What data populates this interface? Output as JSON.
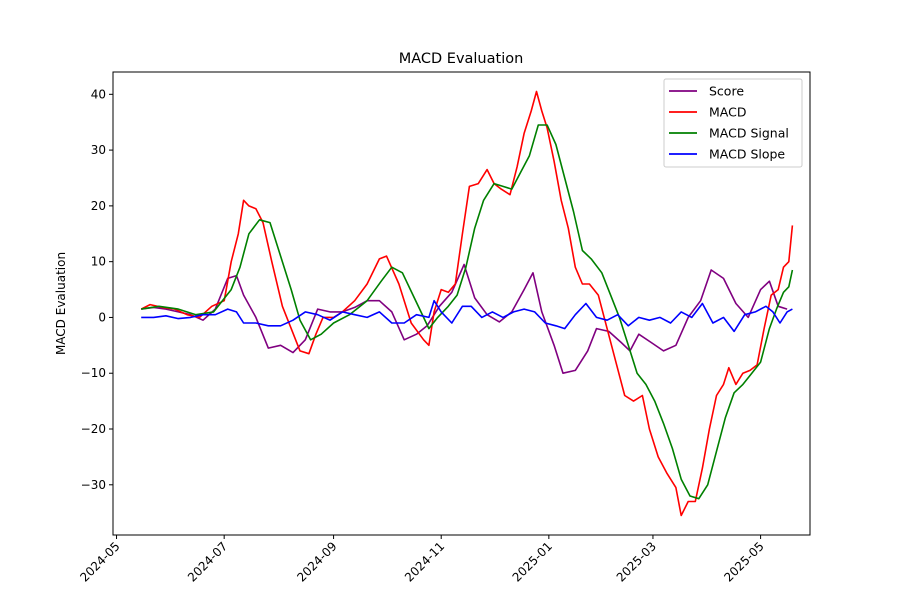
{
  "chart_data": {
    "type": "line",
    "title": "MACD Evaluation",
    "xlabel": "",
    "ylabel": "MACD Evaluation",
    "x_type": "date",
    "xlim": [
      "2024-04-29",
      "2025-05-29"
    ],
    "ylim": [
      -39,
      44
    ],
    "x_ticks": [
      "2024-05",
      "2024-07",
      "2024-09",
      "2024-11",
      "2025-01",
      "2025-03",
      "2025-05"
    ],
    "y_ticks": [
      -30,
      -20,
      -10,
      0,
      10,
      20,
      30,
      40
    ],
    "grid": false,
    "legend_position": "top-right",
    "series": [
      {
        "name": "Score",
        "color": "#800080",
        "points": [
          [
            "2024-05-15",
            1.5
          ],
          [
            "2024-05-22",
            1.8
          ],
          [
            "2024-05-29",
            1.5
          ],
          [
            "2024-06-05",
            1.0
          ],
          [
            "2024-06-12",
            0.5
          ],
          [
            "2024-06-19",
            -0.5
          ],
          [
            "2024-06-26",
            1.5
          ],
          [
            "2024-07-03",
            7.0
          ],
          [
            "2024-07-08",
            7.5
          ],
          [
            "2024-07-12",
            4.0
          ],
          [
            "2024-07-19",
            0.0
          ],
          [
            "2024-07-26",
            -5.5
          ],
          [
            "2024-08-02",
            -5.0
          ],
          [
            "2024-08-09",
            -6.3
          ],
          [
            "2024-08-16",
            -4.0
          ],
          [
            "2024-08-23",
            1.5
          ],
          [
            "2024-08-30",
            1.0
          ],
          [
            "2024-09-06",
            1.0
          ],
          [
            "2024-09-13",
            1.8
          ],
          [
            "2024-09-20",
            3.0
          ],
          [
            "2024-09-27",
            3.0
          ],
          [
            "2024-10-04",
            1.0
          ],
          [
            "2024-10-11",
            -4.0
          ],
          [
            "2024-10-18",
            -3.0
          ],
          [
            "2024-10-24",
            -1.5
          ],
          [
            "2024-10-31",
            2.0
          ],
          [
            "2024-11-07",
            4.5
          ],
          [
            "2024-11-14",
            9.5
          ],
          [
            "2024-11-20",
            3.5
          ],
          [
            "2024-11-27",
            0.5
          ],
          [
            "2024-12-04",
            -0.8
          ],
          [
            "2024-12-11",
            1.0
          ],
          [
            "2024-12-18",
            5.0
          ],
          [
            "2024-12-23",
            8.0
          ],
          [
            "2024-12-28",
            1.0
          ],
          [
            "2025-01-04",
            -5.0
          ],
          [
            "2025-01-09",
            -10.0
          ],
          [
            "2025-01-16",
            -9.5
          ],
          [
            "2025-01-23",
            -6.0
          ],
          [
            "2025-01-28",
            -2.0
          ],
          [
            "2025-02-04",
            -2.5
          ],
          [
            "2025-02-11",
            -4.5
          ],
          [
            "2025-02-16",
            -6.0
          ],
          [
            "2025-02-21",
            -3.0
          ],
          [
            "2025-02-28",
            -4.5
          ],
          [
            "2025-03-07",
            -6.0
          ],
          [
            "2025-03-14",
            -5.0
          ],
          [
            "2025-03-21",
            0.0
          ],
          [
            "2025-03-28",
            3.0
          ],
          [
            "2025-04-03",
            8.5
          ],
          [
            "2025-04-10",
            7.0
          ],
          [
            "2025-04-17",
            2.5
          ],
          [
            "2025-04-24",
            0.0
          ],
          [
            "2025-05-01",
            5.0
          ],
          [
            "2025-05-06",
            6.5
          ],
          [
            "2025-05-11",
            2.0
          ],
          [
            "2025-05-16",
            1.5
          ]
        ]
      },
      {
        "name": "MACD",
        "color": "#ff0000",
        "points": [
          [
            "2024-05-15",
            1.5
          ],
          [
            "2024-05-20",
            2.3
          ],
          [
            "2024-05-27",
            1.8
          ],
          [
            "2024-06-03",
            1.5
          ],
          [
            "2024-06-10",
            0.5
          ],
          [
            "2024-06-17",
            0.0
          ],
          [
            "2024-06-24",
            2.0
          ],
          [
            "2024-07-01",
            3.0
          ],
          [
            "2024-07-05",
            10.0
          ],
          [
            "2024-07-09",
            15.0
          ],
          [
            "2024-07-12",
            21.0
          ],
          [
            "2024-07-15",
            20.0
          ],
          [
            "2024-07-19",
            19.5
          ],
          [
            "2024-07-23",
            17.0
          ],
          [
            "2024-07-28",
            10.0
          ],
          [
            "2024-08-03",
            2.0
          ],
          [
            "2024-08-08",
            -2.0
          ],
          [
            "2024-08-13",
            -6.0
          ],
          [
            "2024-08-18",
            -6.5
          ],
          [
            "2024-08-22",
            -3.0
          ],
          [
            "2024-08-26",
            0.0
          ],
          [
            "2024-09-01",
            0.0
          ],
          [
            "2024-09-06",
            1.0
          ],
          [
            "2024-09-13",
            3.0
          ],
          [
            "2024-09-20",
            6.0
          ],
          [
            "2024-09-27",
            10.5
          ],
          [
            "2024-10-01",
            11.0
          ],
          [
            "2024-10-08",
            6.0
          ],
          [
            "2024-10-15",
            -1.0
          ],
          [
            "2024-10-22",
            -4.0
          ],
          [
            "2024-10-25",
            -5.0
          ],
          [
            "2024-10-28",
            1.0
          ],
          [
            "2024-11-01",
            5.0
          ],
          [
            "2024-11-05",
            4.5
          ],
          [
            "2024-11-09",
            6.0
          ],
          [
            "2024-11-13",
            15.0
          ],
          [
            "2024-11-17",
            23.5
          ],
          [
            "2024-11-22",
            24.0
          ],
          [
            "2024-11-27",
            26.5
          ],
          [
            "2024-12-01",
            24.0
          ],
          [
            "2024-12-05",
            23.0
          ],
          [
            "2024-12-10",
            22.0
          ],
          [
            "2024-12-14",
            27.0
          ],
          [
            "2024-12-18",
            33.0
          ],
          [
            "2024-12-22",
            37.0
          ],
          [
            "2024-12-25",
            40.5
          ],
          [
            "2024-12-28",
            37.0
          ],
          [
            "2024-12-31",
            34.0
          ],
          [
            "2025-01-04",
            28.0
          ],
          [
            "2025-01-08",
            21.0
          ],
          [
            "2025-01-12",
            16.0
          ],
          [
            "2025-01-16",
            9.0
          ],
          [
            "2025-01-20",
            6.0
          ],
          [
            "2025-01-24",
            6.0
          ],
          [
            "2025-01-29",
            4.0
          ],
          [
            "2025-02-03",
            -2.0
          ],
          [
            "2025-02-08",
            -8.0
          ],
          [
            "2025-02-13",
            -14.0
          ],
          [
            "2025-02-18",
            -15.0
          ],
          [
            "2025-02-23",
            -14.0
          ],
          [
            "2025-02-27",
            -20.0
          ],
          [
            "2025-03-04",
            -25.0
          ],
          [
            "2025-03-09",
            -28.0
          ],
          [
            "2025-03-14",
            -30.5
          ],
          [
            "2025-03-17",
            -35.5
          ],
          [
            "2025-03-21",
            -33.0
          ],
          [
            "2025-03-25",
            -33.0
          ],
          [
            "2025-03-29",
            -27.0
          ],
          [
            "2025-04-02",
            -20.0
          ],
          [
            "2025-04-06",
            -14.0
          ],
          [
            "2025-04-10",
            -12.0
          ],
          [
            "2025-04-13",
            -9.0
          ],
          [
            "2025-04-17",
            -12.0
          ],
          [
            "2025-04-21",
            -10.0
          ],
          [
            "2025-04-25",
            -9.5
          ],
          [
            "2025-04-29",
            -8.5
          ],
          [
            "2025-05-03",
            -2.0
          ],
          [
            "2025-05-07",
            4.0
          ],
          [
            "2025-05-11",
            5.0
          ],
          [
            "2025-05-14",
            9.0
          ],
          [
            "2025-05-17",
            10.0
          ],
          [
            "2025-05-19",
            16.5
          ]
        ]
      },
      {
        "name": "MACD Signal",
        "color": "#008000",
        "points": [
          [
            "2024-05-15",
            1.5
          ],
          [
            "2024-05-25",
            2.0
          ],
          [
            "2024-06-05",
            1.5
          ],
          [
            "2024-06-15",
            0.5
          ],
          [
            "2024-06-25",
            1.0
          ],
          [
            "2024-07-05",
            5.0
          ],
          [
            "2024-07-10",
            9.0
          ],
          [
            "2024-07-15",
            15.0
          ],
          [
            "2024-07-21",
            17.5
          ],
          [
            "2024-07-27",
            17.0
          ],
          [
            "2024-08-02",
            11.0
          ],
          [
            "2024-08-08",
            5.0
          ],
          [
            "2024-08-13",
            -0.5
          ],
          [
            "2024-08-19",
            -4.0
          ],
          [
            "2024-08-25",
            -3.0
          ],
          [
            "2024-09-01",
            -1.0
          ],
          [
            "2024-09-10",
            0.5
          ],
          [
            "2024-09-20",
            3.0
          ],
          [
            "2024-09-28",
            6.5
          ],
          [
            "2024-10-04",
            9.0
          ],
          [
            "2024-10-10",
            8.0
          ],
          [
            "2024-10-16",
            4.0
          ],
          [
            "2024-10-22",
            0.0
          ],
          [
            "2024-10-25",
            -2.0
          ],
          [
            "2024-10-30",
            0.0
          ],
          [
            "2024-11-05",
            2.0
          ],
          [
            "2024-11-10",
            4.0
          ],
          [
            "2024-11-15",
            9.0
          ],
          [
            "2024-11-20",
            16.0
          ],
          [
            "2024-11-25",
            21.0
          ],
          [
            "2024-12-01",
            24.0
          ],
          [
            "2024-12-06",
            23.5
          ],
          [
            "2024-12-11",
            23.0
          ],
          [
            "2024-12-16",
            26.0
          ],
          [
            "2024-12-21",
            29.0
          ],
          [
            "2024-12-26",
            34.5
          ],
          [
            "2024-12-31",
            34.5
          ],
          [
            "2025-01-05",
            31.0
          ],
          [
            "2025-01-10",
            25.0
          ],
          [
            "2025-01-15",
            19.0
          ],
          [
            "2025-01-20",
            12.0
          ],
          [
            "2025-01-25",
            10.5
          ],
          [
            "2025-01-31",
            8.0
          ],
          [
            "2025-02-05",
            4.0
          ],
          [
            "2025-02-10",
            0.0
          ],
          [
            "2025-02-15",
            -5.0
          ],
          [
            "2025-02-20",
            -10.0
          ],
          [
            "2025-02-25",
            -12.0
          ],
          [
            "2025-03-02",
            -15.0
          ],
          [
            "2025-03-07",
            -19.0
          ],
          [
            "2025-03-12",
            -23.5
          ],
          [
            "2025-03-17",
            -29.0
          ],
          [
            "2025-03-22",
            -32.0
          ],
          [
            "2025-03-27",
            -32.5
          ],
          [
            "2025-04-01",
            -30.0
          ],
          [
            "2025-04-06",
            -24.0
          ],
          [
            "2025-04-11",
            -18.0
          ],
          [
            "2025-04-16",
            -13.5
          ],
          [
            "2025-04-21",
            -12.0
          ],
          [
            "2025-04-26",
            -10.0
          ],
          [
            "2025-05-01",
            -8.0
          ],
          [
            "2025-05-06",
            -2.0
          ],
          [
            "2025-05-10",
            1.5
          ],
          [
            "2025-05-14",
            4.5
          ],
          [
            "2025-05-17",
            5.5
          ],
          [
            "2025-05-19",
            8.5
          ]
        ]
      },
      {
        "name": "MACD Slope",
        "color": "#0000ff",
        "points": [
          [
            "2024-05-15",
            0.0
          ],
          [
            "2024-05-22",
            0.0
          ],
          [
            "2024-05-29",
            0.3
          ],
          [
            "2024-06-05",
            -0.2
          ],
          [
            "2024-06-12",
            0.0
          ],
          [
            "2024-06-19",
            0.5
          ],
          [
            "2024-06-26",
            0.5
          ],
          [
            "2024-07-03",
            1.5
          ],
          [
            "2024-07-08",
            1.0
          ],
          [
            "2024-07-12",
            -1.0
          ],
          [
            "2024-07-19",
            -1.0
          ],
          [
            "2024-07-26",
            -1.5
          ],
          [
            "2024-08-02",
            -1.5
          ],
          [
            "2024-08-09",
            -0.5
          ],
          [
            "2024-08-16",
            1.0
          ],
          [
            "2024-08-23",
            0.5
          ],
          [
            "2024-08-30",
            -0.5
          ],
          [
            "2024-09-06",
            1.0
          ],
          [
            "2024-09-13",
            0.5
          ],
          [
            "2024-09-20",
            0.0
          ],
          [
            "2024-09-27",
            1.0
          ],
          [
            "2024-10-04",
            -1.0
          ],
          [
            "2024-10-11",
            -1.0
          ],
          [
            "2024-10-18",
            0.5
          ],
          [
            "2024-10-25",
            0.0
          ],
          [
            "2024-10-28",
            3.0
          ],
          [
            "2024-11-01",
            1.0
          ],
          [
            "2024-11-07",
            -1.0
          ],
          [
            "2024-11-13",
            2.0
          ],
          [
            "2024-11-18",
            2.0
          ],
          [
            "2024-11-24",
            0.0
          ],
          [
            "2024-11-30",
            1.0
          ],
          [
            "2024-12-06",
            0.0
          ],
          [
            "2024-12-12",
            1.0
          ],
          [
            "2024-12-18",
            1.5
          ],
          [
            "2024-12-24",
            1.0
          ],
          [
            "2024-12-30",
            -1.0
          ],
          [
            "2025-01-05",
            -1.5
          ],
          [
            "2025-01-10",
            -2.0
          ],
          [
            "2025-01-16",
            0.5
          ],
          [
            "2025-01-22",
            2.5
          ],
          [
            "2025-01-28",
            0.0
          ],
          [
            "2025-02-03",
            -0.5
          ],
          [
            "2025-02-09",
            0.5
          ],
          [
            "2025-02-15",
            -1.5
          ],
          [
            "2025-02-21",
            0.0
          ],
          [
            "2025-02-27",
            -0.5
          ],
          [
            "2025-03-05",
            0.0
          ],
          [
            "2025-03-11",
            -1.0
          ],
          [
            "2025-03-17",
            1.0
          ],
          [
            "2025-03-23",
            0.0
          ],
          [
            "2025-03-29",
            2.5
          ],
          [
            "2025-04-04",
            -1.0
          ],
          [
            "2025-04-10",
            0.0
          ],
          [
            "2025-04-16",
            -2.5
          ],
          [
            "2025-04-22",
            0.5
          ],
          [
            "2025-04-28",
            1.0
          ],
          [
            "2025-05-04",
            2.0
          ],
          [
            "2025-05-08",
            1.0
          ],
          [
            "2025-05-12",
            -1.0
          ],
          [
            "2025-05-16",
            1.0
          ],
          [
            "2025-05-19",
            1.5
          ]
        ]
      }
    ]
  }
}
